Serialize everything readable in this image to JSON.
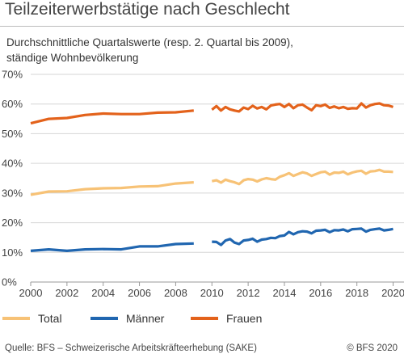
{
  "title": "Teilzeiterwerbstätige nach Geschlecht",
  "subtitle_line1": "Durchschnittliche Quartalswerte (resp. 2. Quartal bis 2009),",
  "subtitle_line2": "ständige Wohnbevölkerung",
  "source": "Quelle: BFS – Schweizerische Arbeitskräfteerhebung (SAKE)",
  "copyright": "© BFS 2020",
  "chart_data": {
    "type": "line",
    "ylim": [
      0,
      70
    ],
    "xlim": [
      2000,
      2020.6
    ],
    "yticks": [
      0,
      10,
      20,
      30,
      40,
      50,
      60,
      70
    ],
    "ytick_labels": [
      "0%",
      "10%",
      "20%",
      "30%",
      "40%",
      "50%",
      "60%",
      "70%"
    ],
    "xticks": [
      2000,
      2002,
      2004,
      2006,
      2008,
      2010,
      2012,
      2014,
      2016,
      2018,
      2020
    ],
    "xtick_labels": [
      "2000",
      "2002",
      "2004",
      "2006",
      "2008",
      "2010",
      "2012",
      "2014",
      "2016",
      "2018",
      "2020"
    ],
    "grid": true,
    "legend_position": "bottom",
    "series": [
      {
        "name": "Total",
        "color": "#f7c276",
        "segments": [
          {
            "x": [
              2000,
              2001,
              2002,
              2003,
              2004,
              2005,
              2006,
              2007,
              2008,
              2009
            ],
            "y": [
              29.4,
              30.5,
              30.6,
              31.3,
              31.6,
              31.7,
              32.2,
              32.3,
              33.2,
              33.6
            ]
          },
          {
            "x": [
              2010.0,
              2010.25,
              2010.5,
              2010.75,
              2011.0,
              2011.25,
              2011.5,
              2011.75,
              2012.0,
              2012.25,
              2012.5,
              2012.75,
              2013.0,
              2013.25,
              2013.5,
              2013.75,
              2014.0,
              2014.25,
              2014.5,
              2014.75,
              2015.0,
              2015.25,
              2015.5,
              2015.75,
              2016.0,
              2016.25,
              2016.5,
              2016.75,
              2017.0,
              2017.25,
              2017.5,
              2017.75,
              2018.0,
              2018.25,
              2018.5,
              2018.75,
              2019.0,
              2019.25,
              2019.5,
              2019.75,
              2020.0
            ],
            "y": [
              34.0,
              34.3,
              33.5,
              34.5,
              34.0,
              33.6,
              33.0,
              34.3,
              34.7,
              34.5,
              33.9,
              34.6,
              35.0,
              34.7,
              34.5,
              35.5,
              36.0,
              36.7,
              35.8,
              36.4,
              37.0,
              36.6,
              35.8,
              36.4,
              37.0,
              37.2,
              36.2,
              36.9,
              36.8,
              37.2,
              36.3,
              36.9,
              37.3,
              37.5,
              36.5,
              37.3,
              37.4,
              37.8,
              37.2,
              37.2,
              37.1
            ]
          }
        ]
      },
      {
        "name": "Männer",
        "color": "#2066b0",
        "segments": [
          {
            "x": [
              2000,
              2001,
              2002,
              2003,
              2004,
              2005,
              2006,
              2007,
              2008,
              2009
            ],
            "y": [
              10.5,
              11.0,
              10.5,
              11.0,
              11.1,
              11.0,
              12.0,
              12.0,
              12.8,
              13.0
            ]
          },
          {
            "x": [
              2010.0,
              2010.25,
              2010.5,
              2010.75,
              2011.0,
              2011.25,
              2011.5,
              2011.75,
              2012.0,
              2012.25,
              2012.5,
              2012.75,
              2013.0,
              2013.25,
              2013.5,
              2013.75,
              2014.0,
              2014.25,
              2014.5,
              2014.75,
              2015.0,
              2015.25,
              2015.5,
              2015.75,
              2016.0,
              2016.25,
              2016.5,
              2016.75,
              2017.0,
              2017.25,
              2017.5,
              2017.75,
              2018.0,
              2018.25,
              2018.5,
              2018.75,
              2019.0,
              2019.25,
              2019.5,
              2019.75,
              2020.0
            ],
            "y": [
              13.6,
              13.5,
              12.5,
              14.0,
              14.5,
              13.3,
              12.8,
              14.0,
              14.2,
              14.6,
              13.6,
              14.3,
              14.5,
              14.9,
              14.8,
              15.5,
              15.7,
              16.9,
              16.1,
              16.8,
              17.1,
              17.0,
              16.4,
              17.3,
              17.4,
              17.6,
              16.8,
              17.5,
              17.4,
              17.7,
              17.1,
              17.8,
              17.9,
              18.0,
              17.0,
              17.6,
              17.8,
              18.0,
              17.4,
              17.6,
              17.9
            ]
          }
        ]
      },
      {
        "name": "Frauen",
        "color": "#e3621b",
        "segments": [
          {
            "x": [
              2000,
              2001,
              2002,
              2003,
              2004,
              2005,
              2006,
              2007,
              2008,
              2009
            ],
            "y": [
              53.5,
              55.0,
              55.3,
              56.3,
              56.8,
              56.6,
              56.6,
              57.1,
              57.2,
              57.8
            ]
          },
          {
            "x": [
              2010.0,
              2010.25,
              2010.5,
              2010.75,
              2011.0,
              2011.25,
              2011.5,
              2011.75,
              2012.0,
              2012.25,
              2012.5,
              2012.75,
              2013.0,
              2013.25,
              2013.5,
              2013.75,
              2014.0,
              2014.25,
              2014.5,
              2014.75,
              2015.0,
              2015.25,
              2015.5,
              2015.75,
              2016.0,
              2016.25,
              2016.5,
              2016.75,
              2017.0,
              2017.25,
              2017.5,
              2017.75,
              2018.0,
              2018.25,
              2018.5,
              2018.75,
              2019.0,
              2019.25,
              2019.5,
              2019.75,
              2020.0
            ],
            "y": [
              58.1,
              59.3,
              57.8,
              59.0,
              58.2,
              57.8,
              57.5,
              58.8,
              58.3,
              59.4,
              58.5,
              59.0,
              58.2,
              59.5,
              59.8,
              60.0,
              59.0,
              60.0,
              58.6,
              59.6,
              59.8,
              58.8,
              57.9,
              59.6,
              59.3,
              59.8,
              58.7,
              59.2,
              58.6,
              59.0,
              58.4,
              58.6,
              58.5,
              60.2,
              58.8,
              59.6,
              60.0,
              60.2,
              59.6,
              59.5,
              59.0
            ]
          }
        ]
      }
    ]
  }
}
